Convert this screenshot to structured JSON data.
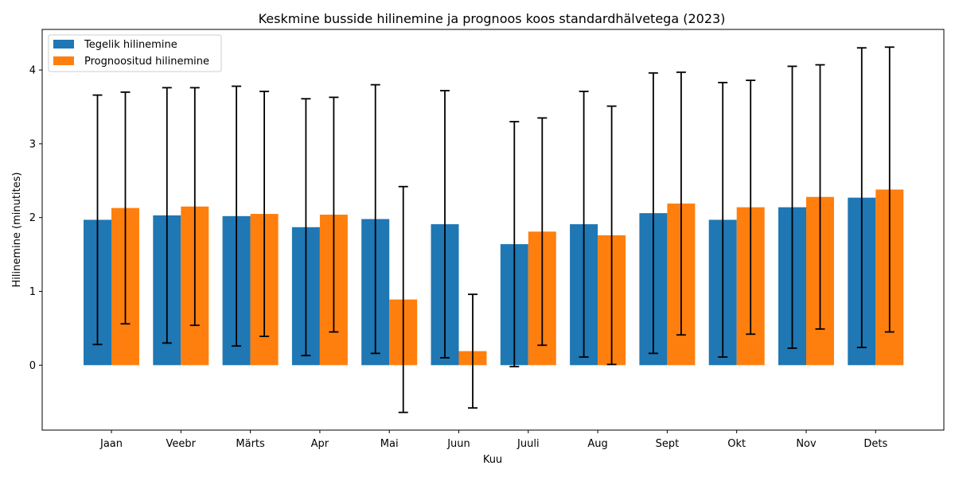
{
  "chart_data": {
    "type": "bar",
    "title": "Keskmine busside hilinemine ja prognoos koos standardhälvetega (2023)",
    "xlabel": "Kuu",
    "ylabel": "Hilinemine (minutites)",
    "categories": [
      "Jaan",
      "Veebr",
      "Märts",
      "Apr",
      "Mai",
      "Juun",
      "Juuli",
      "Aug",
      "Sept",
      "Okt",
      "Nov",
      "Dets"
    ],
    "ylim": [
      -0.88,
      4.55
    ],
    "yticks": [
      0,
      1,
      2,
      3,
      4
    ],
    "legend_position": "top-left",
    "grid": false,
    "series": [
      {
        "name": "Tegelik hilinemine",
        "color": "#1f77b4",
        "values": [
          1.97,
          2.03,
          2.02,
          1.87,
          1.98,
          1.91,
          1.64,
          1.91,
          2.06,
          1.97,
          2.14,
          2.27
        ],
        "errors": [
          1.69,
          1.73,
          1.76,
          1.74,
          1.82,
          1.81,
          1.66,
          1.8,
          1.9,
          1.86,
          1.91,
          2.03
        ]
      },
      {
        "name": "Prognoositud hilinemine",
        "color": "#ff7f0e",
        "values": [
          2.13,
          2.15,
          2.05,
          2.04,
          0.89,
          0.19,
          1.81,
          1.76,
          2.19,
          2.14,
          2.28,
          2.38
        ],
        "errors": [
          1.57,
          1.61,
          1.66,
          1.59,
          1.53,
          0.77,
          1.54,
          1.75,
          1.78,
          1.72,
          1.79,
          1.93
        ]
      }
    ]
  }
}
